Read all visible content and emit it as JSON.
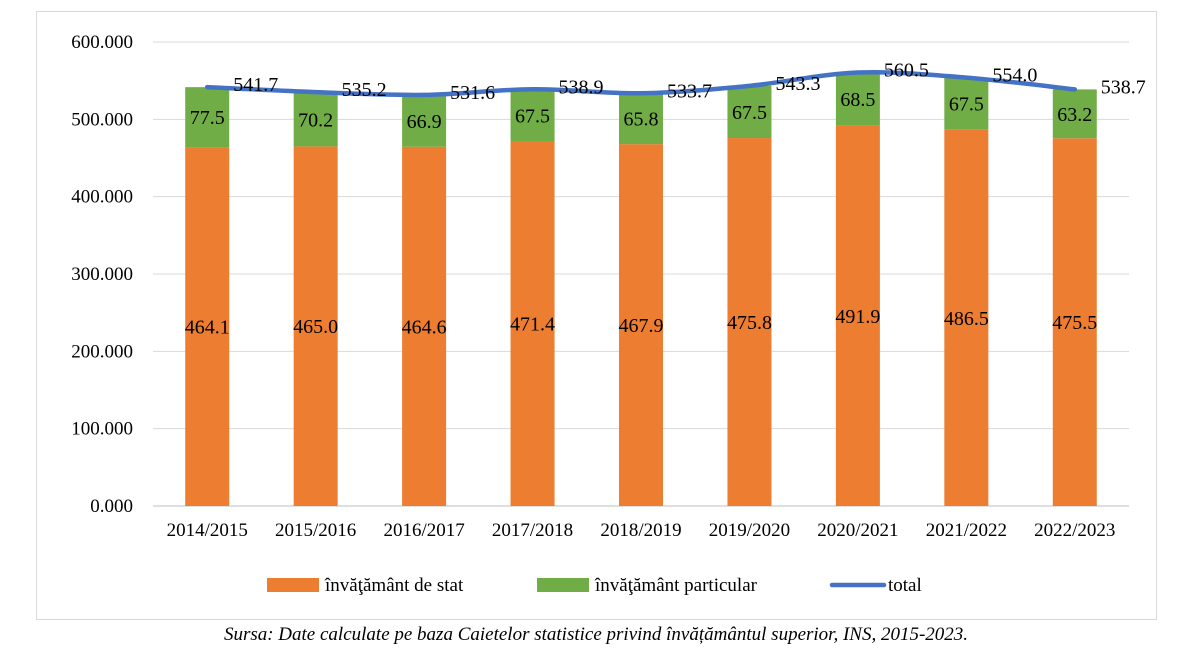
{
  "chart_data": {
    "type": "bar",
    "stacked": true,
    "categories": [
      "2014/2015",
      "2015/2016",
      "2016/2017",
      "2017/2018",
      "2018/2019",
      "2019/2020",
      "2020/2021",
      "2021/2022",
      "2022/2023"
    ],
    "series": [
      {
        "name": "învăţământ de stat",
        "kind": "bar",
        "color": "#ED7D31",
        "values": [
          464.1,
          465.0,
          464.6,
          471.4,
          467.9,
          475.8,
          491.9,
          486.5,
          475.5
        ],
        "labels": [
          "464.1",
          "465.0",
          "464.6",
          "471.4",
          "467.9",
          "475.8",
          "491.9",
          "486.5",
          "475.5"
        ]
      },
      {
        "name": "învăţământ particular",
        "kind": "bar",
        "color": "#70AD47",
        "values": [
          77.5,
          70.2,
          66.9,
          67.5,
          65.8,
          67.5,
          68.5,
          67.5,
          63.2
        ],
        "labels": [
          "77.5",
          "70.2",
          "66.9",
          "67.5",
          "65.8",
          "67.5",
          "68.5",
          "67.5",
          "63.2"
        ]
      },
      {
        "name": "total",
        "kind": "line",
        "color": "#4472C4",
        "values": [
          541.7,
          535.2,
          531.6,
          538.9,
          533.7,
          543.3,
          560.5,
          554.0,
          538.7
        ],
        "labels": [
          "541.7",
          "535.2",
          "531.6",
          "538.9",
          "533.7",
          "543.3",
          "560.5",
          "554.0",
          "538.7"
        ]
      }
    ],
    "ylim": [
      0,
      600
    ],
    "yticks": [
      0,
      100,
      200,
      300,
      400,
      500,
      600
    ],
    "ytick_labels": [
      "0.000",
      "100.000",
      "200.000",
      "300.000",
      "400.000",
      "500.000",
      "600.000"
    ],
    "grid": true,
    "legend_position": "bottom"
  },
  "source_note": "Sursa: Date calculate pe baza Caietelor statistice privind învățământul superior, INS, 2015-2023."
}
